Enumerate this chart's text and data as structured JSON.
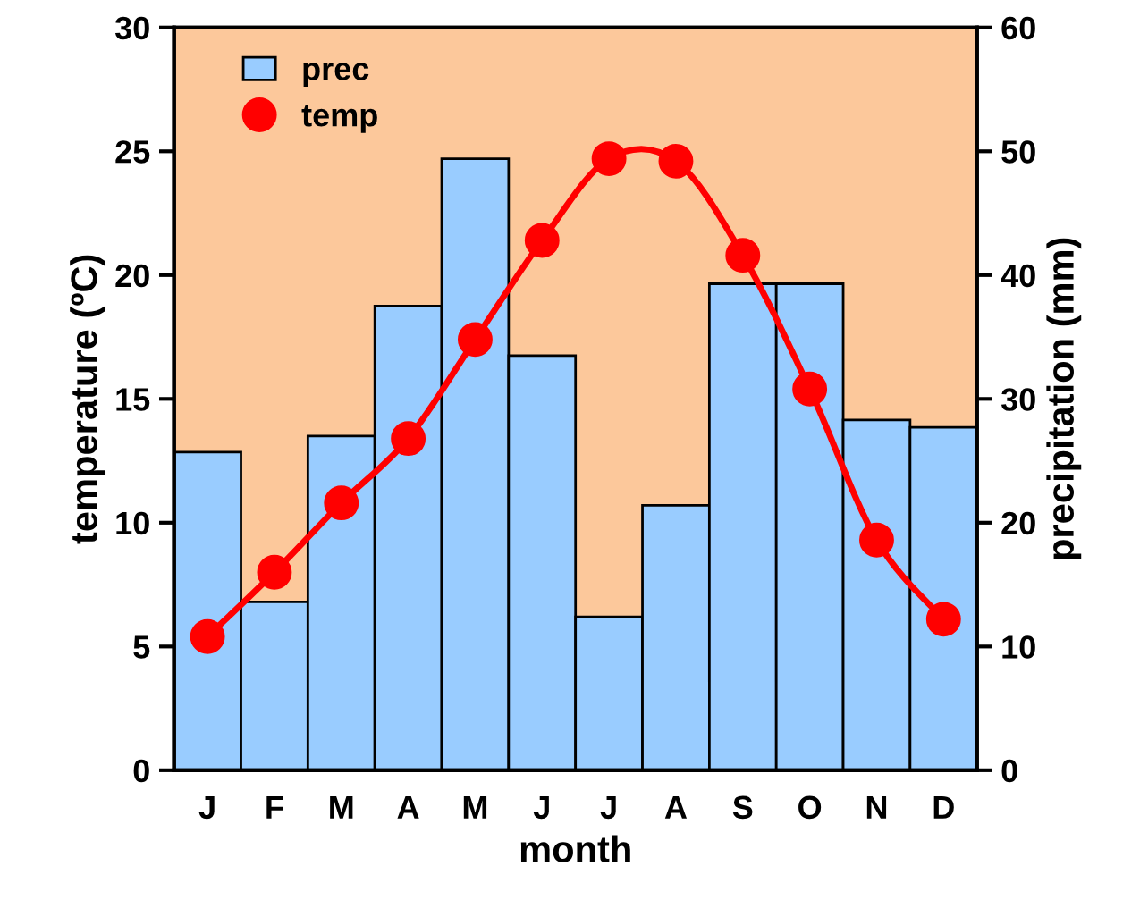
{
  "chart_data": {
    "type": "bar",
    "xlabel": "month",
    "ylabel": "temperature (ºC)",
    "y2label": "precipitation (mm)",
    "categories": [
      "J",
      "F",
      "M",
      "A",
      "M",
      "J",
      "J",
      "A",
      "S",
      "O",
      "N",
      "D"
    ],
    "series": [
      {
        "name": "prec",
        "axis": "y2",
        "color": "#99ccff",
        "values": [
          25.7,
          13.6,
          27,
          37.5,
          49.4,
          33.5,
          12.4,
          21.4,
          39.3,
          39.3,
          28.3,
          27.7
        ]
      },
      {
        "name": "temp",
        "type": "line",
        "axis": "y",
        "color": "#ff0000",
        "marker": "circle",
        "values": [
          5.4,
          8.0,
          10.8,
          13.4,
          17.4,
          21.4,
          24.7,
          24.6,
          20.8,
          15.4,
          9.3,
          6.1
        ]
      }
    ],
    "ylim": [
      0,
      30
    ],
    "yticks": [
      0,
      5,
      10,
      15,
      20,
      25,
      30
    ],
    "y2lim": [
      0,
      60
    ],
    "y2ticks": [
      0,
      10,
      20,
      30,
      40,
      50,
      60
    ],
    "legend": "top left",
    "grid": false
  }
}
